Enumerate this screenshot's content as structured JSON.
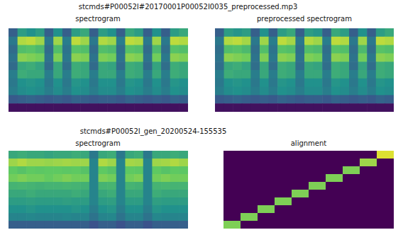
{
  "chart_data": [
    {
      "type": "heatmap",
      "title": "stcmds#P00052I#20170001P00052I0035_preprocessed.mp3",
      "subtitle": "spectrogram",
      "zlim": [
        0,
        1
      ],
      "tick_labels": false,
      "cells": [
        [
          0.3,
          0.55,
          0.5,
          0.55,
          0.3,
          0.5,
          0.3,
          0.55,
          0.6,
          0.3,
          0.55,
          0.5,
          0.3,
          0.6,
          0.55,
          0.3,
          0.5,
          0.3,
          0.55,
          0.6
        ],
        [
          0.4,
          0.88,
          0.9,
          0.85,
          0.4,
          0.85,
          0.42,
          0.9,
          0.85,
          0.4,
          0.88,
          0.85,
          0.42,
          0.9,
          0.88,
          0.4,
          0.85,
          0.4,
          0.9,
          0.88
        ],
        [
          0.35,
          0.7,
          0.72,
          0.68,
          0.35,
          0.7,
          0.38,
          0.72,
          0.7,
          0.35,
          0.7,
          0.68,
          0.36,
          0.72,
          0.7,
          0.35,
          0.68,
          0.36,
          0.72,
          0.7
        ],
        [
          0.38,
          0.82,
          0.8,
          0.78,
          0.38,
          0.8,
          0.4,
          0.82,
          0.8,
          0.38,
          0.8,
          0.78,
          0.38,
          0.82,
          0.8,
          0.38,
          0.78,
          0.4,
          0.82,
          0.8
        ],
        [
          0.35,
          0.6,
          0.62,
          0.58,
          0.35,
          0.6,
          0.36,
          0.62,
          0.6,
          0.35,
          0.6,
          0.58,
          0.35,
          0.62,
          0.6,
          0.35,
          0.58,
          0.36,
          0.62,
          0.6
        ],
        [
          0.42,
          0.62,
          0.6,
          0.6,
          0.42,
          0.6,
          0.42,
          0.62,
          0.6,
          0.42,
          0.6,
          0.6,
          0.42,
          0.62,
          0.6,
          0.42,
          0.6,
          0.42,
          0.62,
          0.6
        ],
        [
          0.4,
          0.5,
          0.52,
          0.5,
          0.4,
          0.5,
          0.4,
          0.52,
          0.5,
          0.4,
          0.5,
          0.5,
          0.4,
          0.52,
          0.5,
          0.4,
          0.5,
          0.4,
          0.52,
          0.5
        ],
        [
          0.42,
          0.48,
          0.5,
          0.48,
          0.42,
          0.48,
          0.42,
          0.5,
          0.48,
          0.42,
          0.48,
          0.48,
          0.42,
          0.5,
          0.48,
          0.42,
          0.48,
          0.42,
          0.5,
          0.48
        ],
        [
          0.28,
          0.3,
          0.32,
          0.3,
          0.28,
          0.3,
          0.28,
          0.32,
          0.3,
          0.28,
          0.3,
          0.3,
          0.28,
          0.32,
          0.3,
          0.28,
          0.3,
          0.28,
          0.32,
          0.3
        ],
        [
          0.05,
          0.05,
          0.05,
          0.05,
          0.05,
          0.05,
          0.05,
          0.05,
          0.05,
          0.05,
          0.05,
          0.05,
          0.05,
          0.05,
          0.05,
          0.05,
          0.05,
          0.05,
          0.05,
          0.05
        ]
      ]
    },
    {
      "type": "heatmap",
      "title": "preprocessed spectrogram",
      "zlim": [
        0,
        1
      ],
      "tick_labels": false,
      "cells": [
        [
          0.3,
          0.55,
          0.52,
          0.55,
          0.3,
          0.5,
          0.3,
          0.55,
          0.6,
          0.3,
          0.55,
          0.52,
          0.3,
          0.6,
          0.55,
          0.3,
          0.5,
          0.3,
          0.55,
          0.6
        ],
        [
          0.4,
          0.88,
          0.9,
          0.86,
          0.4,
          0.85,
          0.42,
          0.9,
          0.86,
          0.4,
          0.88,
          0.85,
          0.42,
          0.9,
          0.88,
          0.4,
          0.85,
          0.4,
          0.9,
          0.88
        ],
        [
          0.36,
          0.7,
          0.72,
          0.68,
          0.36,
          0.7,
          0.38,
          0.72,
          0.7,
          0.36,
          0.7,
          0.68,
          0.36,
          0.72,
          0.7,
          0.36,
          0.68,
          0.36,
          0.72,
          0.7
        ],
        [
          0.38,
          0.82,
          0.8,
          0.78,
          0.38,
          0.8,
          0.4,
          0.82,
          0.8,
          0.38,
          0.8,
          0.78,
          0.38,
          0.82,
          0.8,
          0.38,
          0.78,
          0.4,
          0.82,
          0.8
        ],
        [
          0.36,
          0.6,
          0.62,
          0.58,
          0.36,
          0.6,
          0.36,
          0.62,
          0.6,
          0.36,
          0.6,
          0.58,
          0.36,
          0.62,
          0.6,
          0.36,
          0.58,
          0.36,
          0.62,
          0.6
        ],
        [
          0.42,
          0.62,
          0.6,
          0.6,
          0.42,
          0.6,
          0.42,
          0.62,
          0.6,
          0.42,
          0.6,
          0.6,
          0.42,
          0.62,
          0.6,
          0.42,
          0.6,
          0.42,
          0.62,
          0.6
        ],
        [
          0.4,
          0.5,
          0.52,
          0.5,
          0.4,
          0.5,
          0.4,
          0.52,
          0.5,
          0.4,
          0.5,
          0.5,
          0.4,
          0.52,
          0.5,
          0.4,
          0.5,
          0.4,
          0.52,
          0.5
        ],
        [
          0.42,
          0.48,
          0.5,
          0.48,
          0.42,
          0.48,
          0.42,
          0.5,
          0.48,
          0.42,
          0.48,
          0.48,
          0.42,
          0.5,
          0.48,
          0.42,
          0.48,
          0.42,
          0.5,
          0.48
        ],
        [
          0.28,
          0.3,
          0.32,
          0.3,
          0.28,
          0.3,
          0.28,
          0.32,
          0.3,
          0.28,
          0.3,
          0.3,
          0.28,
          0.32,
          0.3,
          0.28,
          0.3,
          0.28,
          0.32,
          0.3
        ],
        [
          0.05,
          0.05,
          0.05,
          0.05,
          0.05,
          0.05,
          0.05,
          0.05,
          0.05,
          0.05,
          0.05,
          0.05,
          0.05,
          0.05,
          0.05,
          0.05,
          0.05,
          0.05,
          0.05,
          0.05
        ]
      ]
    },
    {
      "type": "heatmap",
      "title": "stcmds#P00052I_gen_20200524-155535",
      "subtitle": "spectrogram",
      "zlim": [
        0,
        1
      ],
      "tick_labels": false,
      "cells": [
        [
          0.6,
          0.62,
          0.6,
          0.6,
          0.58,
          0.6,
          0.6,
          0.62,
          0.6,
          0.4,
          0.6,
          0.62,
          0.4,
          0.6,
          0.62,
          0.4,
          0.6,
          0.6,
          0.62,
          0.6
        ],
        [
          0.85,
          0.88,
          0.85,
          0.85,
          0.84,
          0.85,
          0.86,
          0.85,
          0.85,
          0.45,
          0.88,
          0.85,
          0.45,
          0.86,
          0.85,
          0.45,
          0.85,
          0.86,
          0.88,
          0.85
        ],
        [
          0.75,
          0.72,
          0.75,
          0.74,
          0.75,
          0.75,
          0.74,
          0.75,
          0.72,
          0.45,
          0.75,
          0.72,
          0.45,
          0.75,
          0.74,
          0.45,
          0.75,
          0.72,
          0.75,
          0.74
        ],
        [
          0.78,
          0.8,
          0.78,
          0.78,
          0.76,
          0.78,
          0.8,
          0.78,
          0.78,
          0.45,
          0.8,
          0.78,
          0.45,
          0.78,
          0.8,
          0.45,
          0.78,
          0.8,
          0.78,
          0.78
        ],
        [
          0.65,
          0.66,
          0.65,
          0.64,
          0.65,
          0.65,
          0.66,
          0.65,
          0.64,
          0.45,
          0.65,
          0.66,
          0.45,
          0.65,
          0.64,
          0.45,
          0.65,
          0.66,
          0.65,
          0.65
        ],
        [
          0.6,
          0.6,
          0.62,
          0.6,
          0.6,
          0.6,
          0.6,
          0.62,
          0.6,
          0.45,
          0.6,
          0.62,
          0.45,
          0.6,
          0.6,
          0.45,
          0.62,
          0.6,
          0.6,
          0.6
        ],
        [
          0.55,
          0.55,
          0.56,
          0.55,
          0.55,
          0.55,
          0.56,
          0.55,
          0.55,
          0.45,
          0.55,
          0.56,
          0.45,
          0.55,
          0.55,
          0.45,
          0.56,
          0.55,
          0.55,
          0.55
        ],
        [
          0.5,
          0.5,
          0.52,
          0.5,
          0.5,
          0.5,
          0.5,
          0.52,
          0.5,
          0.42,
          0.5,
          0.52,
          0.42,
          0.5,
          0.5,
          0.42,
          0.52,
          0.5,
          0.5,
          0.5
        ],
        [
          0.45,
          0.45,
          0.46,
          0.45,
          0.45,
          0.45,
          0.46,
          0.45,
          0.45,
          0.38,
          0.45,
          0.46,
          0.38,
          0.45,
          0.45,
          0.38,
          0.46,
          0.45,
          0.45,
          0.45
        ],
        [
          0.3,
          0.3,
          0.3,
          0.3,
          0.3,
          0.3,
          0.3,
          0.3,
          0.3,
          0.25,
          0.3,
          0.3,
          0.25,
          0.3,
          0.3,
          0.25,
          0.3,
          0.3,
          0.3,
          0.3
        ]
      ]
    },
    {
      "type": "heatmap",
      "title": "alignment",
      "zlim": [
        0,
        1
      ],
      "tick_labels": false,
      "cells": [
        [
          0,
          0,
          0,
          0,
          0,
          0,
          0,
          0,
          0,
          0,
          0,
          0,
          0,
          0,
          0,
          0,
          0,
          0,
          0.95,
          0.95
        ],
        [
          0,
          0,
          0,
          0,
          0,
          0,
          0,
          0,
          0,
          0,
          0,
          0,
          0,
          0,
          0,
          0,
          0.85,
          0.85,
          0,
          0
        ],
        [
          0,
          0,
          0,
          0,
          0,
          0,
          0,
          0,
          0,
          0,
          0,
          0,
          0,
          0,
          0.8,
          0.8,
          0,
          0,
          0,
          0
        ],
        [
          0,
          0,
          0,
          0,
          0,
          0,
          0,
          0,
          0,
          0,
          0,
          0,
          0.8,
          0.8,
          0,
          0,
          0,
          0,
          0,
          0
        ],
        [
          0,
          0,
          0,
          0,
          0,
          0,
          0,
          0,
          0,
          0,
          0.8,
          0.8,
          0,
          0,
          0,
          0,
          0,
          0,
          0,
          0
        ],
        [
          0,
          0,
          0,
          0,
          0,
          0,
          0,
          0,
          0.8,
          0.8,
          0,
          0,
          0,
          0,
          0,
          0,
          0,
          0,
          0,
          0
        ],
        [
          0,
          0,
          0,
          0,
          0,
          0,
          0.8,
          0.8,
          0,
          0,
          0,
          0,
          0,
          0,
          0,
          0,
          0,
          0,
          0,
          0
        ],
        [
          0,
          0,
          0,
          0,
          0.8,
          0.8,
          0,
          0,
          0,
          0,
          0,
          0,
          0,
          0,
          0,
          0,
          0,
          0,
          0,
          0
        ],
        [
          0,
          0,
          0.8,
          0.8,
          0,
          0,
          0,
          0,
          0,
          0,
          0,
          0,
          0,
          0,
          0,
          0,
          0,
          0,
          0,
          0
        ],
        [
          0.8,
          0.8,
          0,
          0,
          0,
          0,
          0,
          0,
          0,
          0,
          0,
          0,
          0,
          0,
          0,
          0,
          0,
          0,
          0,
          0
        ]
      ]
    }
  ]
}
